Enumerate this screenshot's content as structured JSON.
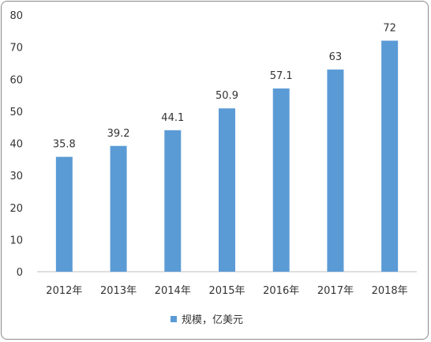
{
  "chart_data": {
    "type": "bar",
    "categories": [
      "2012年",
      "2013年",
      "2014年",
      "2015年",
      "2016年",
      "2017年",
      "2018年"
    ],
    "series": [
      {
        "name": "规模，亿美元",
        "values": [
          35.8,
          39.2,
          44.1,
          50.9,
          57.1,
          63,
          72
        ],
        "labels": [
          "35.8",
          "39.2",
          "44.1",
          "50.9",
          "57.1",
          "63",
          "72"
        ]
      }
    ],
    "ylim": [
      0,
      80
    ],
    "yticks": [
      "0",
      "10",
      "20",
      "30",
      "40",
      "50",
      "60",
      "70",
      "80"
    ],
    "grid": false,
    "legend_position": "bottom",
    "bar_color": "#5b9bd5"
  }
}
